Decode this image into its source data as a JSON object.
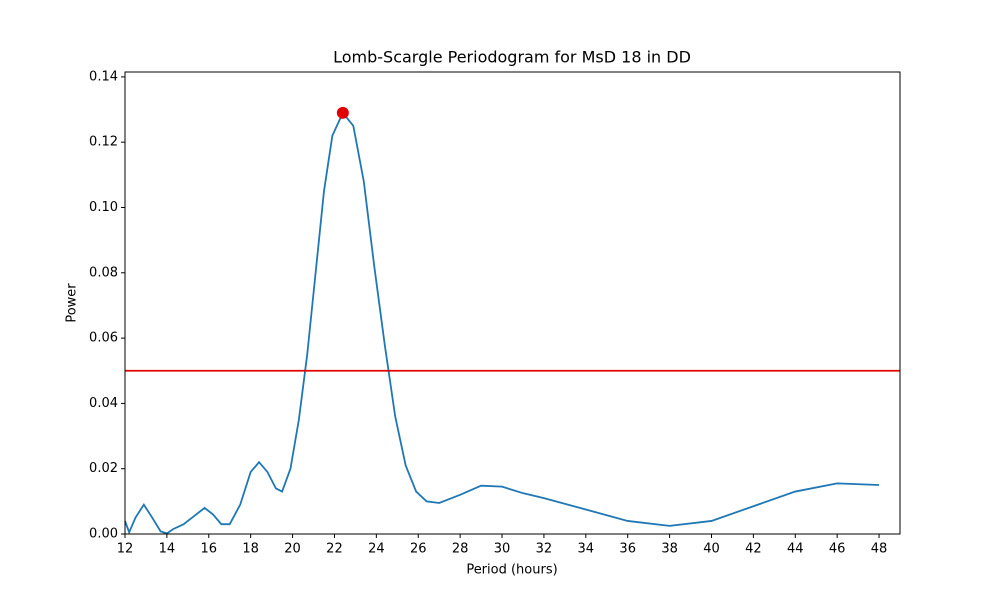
{
  "chart_data": {
    "type": "line",
    "title": "Lomb-Scargle Periodogram for MsD 18 in DD",
    "x_label": "Period (hours)",
    "y_label": "Power",
    "x": [
      12,
      12.2,
      12.5,
      12.9,
      13.3,
      13.7,
      14,
      14.3,
      14.8,
      15.2,
      15.8,
      16.2,
      16.6,
      17,
      17.5,
      18,
      18.4,
      18.8,
      19.2,
      19.5,
      19.9,
      20.3,
      20.7,
      21.1,
      21.5,
      21.9,
      22.4,
      22.9,
      23.4,
      23.9,
      24.4,
      24.9,
      25.4,
      25.9,
      26.4,
      27,
      28,
      29,
      30,
      31,
      32,
      34,
      36,
      38,
      40,
      42,
      44,
      46,
      48
    ],
    "series": [
      {
        "color": "#1f77b4",
        "values": [
          0.004,
          0.0005,
          0.005,
          0.009,
          0.005,
          0.0008,
          0.0002,
          0.0015,
          0.003,
          0.005,
          0.008,
          0.006,
          0.003,
          0.003,
          0.009,
          0.019,
          0.022,
          0.019,
          0.014,
          0.013,
          0.02,
          0.035,
          0.055,
          0.08,
          0.105,
          0.122,
          0.129,
          0.125,
          0.108,
          0.082,
          0.058,
          0.036,
          0.021,
          0.013,
          0.01,
          0.0095,
          0.012,
          0.0148,
          0.0145,
          0.0125,
          0.011,
          0.0075,
          0.004,
          0.0025,
          0.004,
          0.0085,
          0.013,
          0.0155,
          0.015
        ]
      }
    ],
    "peak": {
      "x": 22.4,
      "y": 0.129,
      "color": "#e00000"
    },
    "threshold": {
      "value": 0.05,
      "color": "#e00000"
    },
    "xlim": [
      12,
      49
    ],
    "ylim": [
      0,
      0.1415
    ],
    "xticks": [
      12,
      14,
      16,
      18,
      20,
      22,
      24,
      26,
      28,
      30,
      32,
      34,
      36,
      38,
      40,
      42,
      44,
      46,
      48
    ],
    "yticks": [
      {
        "value": 0,
        "label": "0.00"
      },
      {
        "value": 0.02,
        "label": "0.02"
      },
      {
        "value": 0.04,
        "label": "0.04"
      },
      {
        "value": 0.06,
        "label": "0.06"
      },
      {
        "value": 0.08,
        "label": "0.08"
      },
      {
        "value": 0.1,
        "label": "0.10"
      },
      {
        "value": 0.12,
        "label": "0.12"
      },
      {
        "value": 0.14,
        "label": "0.14"
      }
    ]
  }
}
